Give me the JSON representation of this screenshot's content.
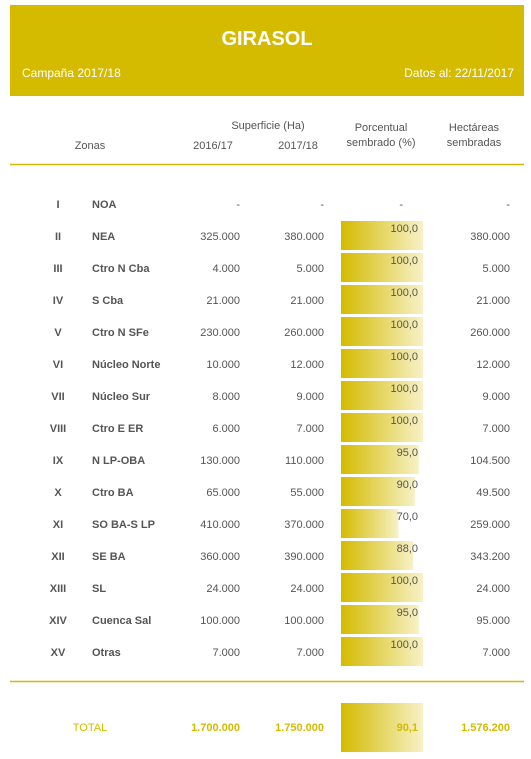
{
  "header": {
    "title": "GIRASOL",
    "campaign": "Campaña 2017/18",
    "date": "Datos al: 22/11/2017"
  },
  "table": {
    "headers": {
      "zones": "Zonas",
      "area": "Superficie (Ha)",
      "season1": "2016/17",
      "season2": "2017/18",
      "pct_line1": "Porcentual",
      "pct_line2": "sembrado (%)",
      "ha_line1": "Hectáreas",
      "ha_line2": "sembradas"
    },
    "rows": [
      {
        "num": "I",
        "zone": "NOA",
        "s1": "-",
        "s2": "-",
        "pct": null,
        "pct_label": "-",
        "ha": "-"
      },
      {
        "num": "II",
        "zone": "NEA",
        "s1": "325.000",
        "s2": "380.000",
        "pct": 100.0,
        "pct_label": "100,0",
        "ha": "380.000"
      },
      {
        "num": "III",
        "zone": "Ctro N Cba",
        "s1": "4.000",
        "s2": "5.000",
        "pct": 100.0,
        "pct_label": "100,0",
        "ha": "5.000"
      },
      {
        "num": "IV",
        "zone": "S Cba",
        "s1": "21.000",
        "s2": "21.000",
        "pct": 100.0,
        "pct_label": "100,0",
        "ha": "21.000"
      },
      {
        "num": "V",
        "zone": "Ctro N SFe",
        "s1": "230.000",
        "s2": "260.000",
        "pct": 100.0,
        "pct_label": "100,0",
        "ha": "260.000"
      },
      {
        "num": "VI",
        "zone": "Núcleo Norte",
        "s1": "10.000",
        "s2": "12.000",
        "pct": 100.0,
        "pct_label": "100,0",
        "ha": "12.000"
      },
      {
        "num": "VII",
        "zone": "Núcleo Sur",
        "s1": "8.000",
        "s2": "9.000",
        "pct": 100.0,
        "pct_label": "100,0",
        "ha": "9.000"
      },
      {
        "num": "VIII",
        "zone": "Ctro E ER",
        "s1": "6.000",
        "s2": "7.000",
        "pct": 100.0,
        "pct_label": "100,0",
        "ha": "7.000"
      },
      {
        "num": "IX",
        "zone": "N LP-OBA",
        "s1": "130.000",
        "s2": "110.000",
        "pct": 95.0,
        "pct_label": "95,0",
        "ha": "104.500"
      },
      {
        "num": "X",
        "zone": "Ctro BA",
        "s1": "65.000",
        "s2": "55.000",
        "pct": 90.0,
        "pct_label": "90,0",
        "ha": "49.500"
      },
      {
        "num": "XI",
        "zone": "SO BA-S LP",
        "s1": "410.000",
        "s2": "370.000",
        "pct": 70.0,
        "pct_label": "70,0",
        "ha": "259.000"
      },
      {
        "num": "XII",
        "zone": "SE BA",
        "s1": "360.000",
        "s2": "390.000",
        "pct": 88.0,
        "pct_label": "88,0",
        "ha": "343.200"
      },
      {
        "num": "XIII",
        "zone": "SL",
        "s1": "24.000",
        "s2": "24.000",
        "pct": 100.0,
        "pct_label": "100,0",
        "ha": "24.000"
      },
      {
        "num": "XIV",
        "zone": "Cuenca Sal",
        "s1": "100.000",
        "s2": "100.000",
        "pct": 95.0,
        "pct_label": "95,0",
        "ha": "95.000"
      },
      {
        "num": "XV",
        "zone": "Otras",
        "s1": "7.000",
        "s2": "7.000",
        "pct": 100.0,
        "pct_label": "100,0",
        "ha": "7.000"
      }
    ],
    "total": {
      "label": "TOTAL",
      "s1": "1.700.000",
      "s2": "1.750.000",
      "pct": 90.1,
      "pct_label": "90,1",
      "ha": "1.576.200"
    }
  }
}
